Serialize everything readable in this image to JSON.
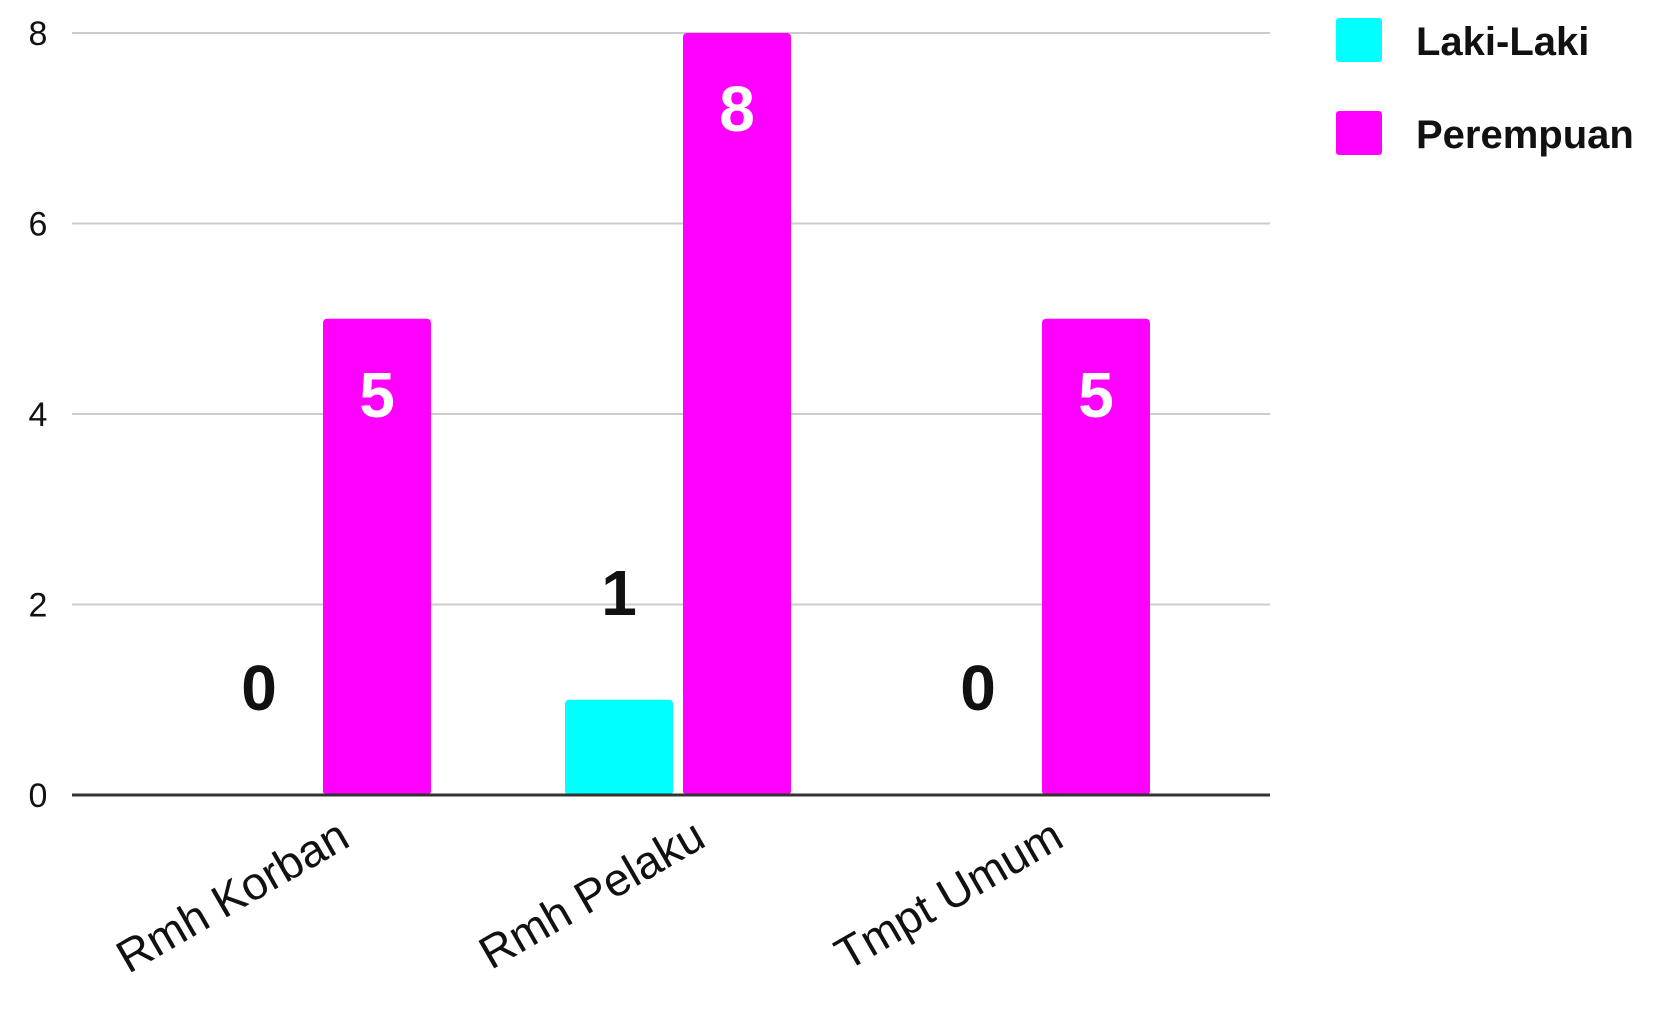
{
  "chart_data": {
    "type": "bar",
    "title": "",
    "xlabel": "",
    "ylabel": "",
    "categories": [
      "Rmh Korban",
      "Rmh Pelaku",
      "Tmpt Umum"
    ],
    "series": [
      {
        "name": "Laki-Laki",
        "color": "#00ffff",
        "values": [
          0,
          1,
          0
        ]
      },
      {
        "name": "Perempuan",
        "color": "#ff00ff",
        "values": [
          5,
          8,
          5
        ]
      }
    ],
    "ylim": [
      0,
      8
    ],
    "yticks": [
      "0",
      "2",
      "4",
      "6",
      "8"
    ],
    "grid": true,
    "legend_position": "top-right",
    "data_labels": [
      [
        "0",
        "1",
        "0"
      ],
      [
        "5",
        "8",
        "5"
      ]
    ]
  }
}
